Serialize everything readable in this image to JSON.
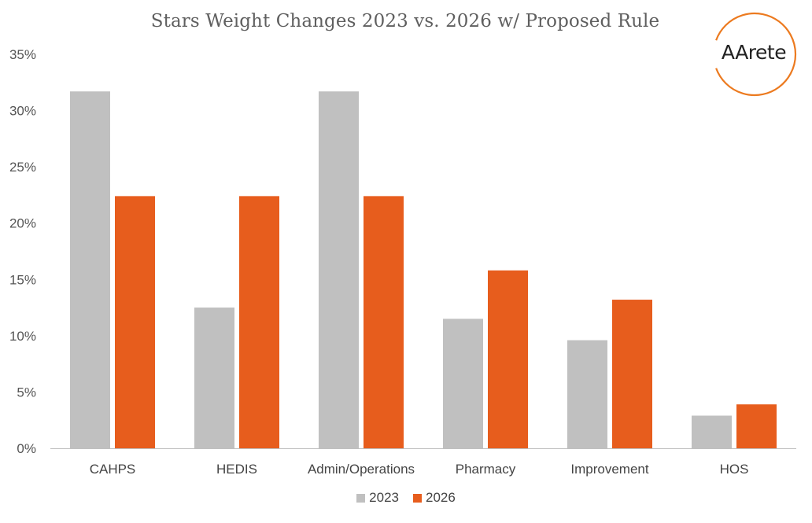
{
  "colors": {
    "series_2023": "#c0c0c0",
    "series_2026": "#e75d1d",
    "axis": "#bfbfbf",
    "tick_text": "#555555",
    "logo_arc": "#ec7a1f"
  },
  "logo": {
    "text": "AArete"
  },
  "chart_data": {
    "type": "bar",
    "title": "Stars Weight Changes 2023 vs. 2026 w/ Proposed Rule",
    "xlabel": "",
    "ylabel": "",
    "ylim": [
      0,
      0.35
    ],
    "yticks": [
      0,
      0.05,
      0.1,
      0.15,
      0.2,
      0.25,
      0.3,
      0.35
    ],
    "ytick_labels": [
      "0%",
      "5%",
      "10%",
      "15%",
      "20%",
      "25%",
      "30%",
      "35%"
    ],
    "grid": false,
    "legend_position": "bottom",
    "categories": [
      "CAHPS",
      "HEDIS",
      "Admin/Operations",
      "Pharmacy",
      "Improvement",
      "HOS"
    ],
    "series": [
      {
        "name": "2023",
        "values": [
          0.317,
          0.125,
          0.317,
          0.115,
          0.096,
          0.029
        ]
      },
      {
        "name": "2026",
        "values": [
          0.224,
          0.224,
          0.224,
          0.158,
          0.132,
          0.039
        ]
      }
    ]
  }
}
